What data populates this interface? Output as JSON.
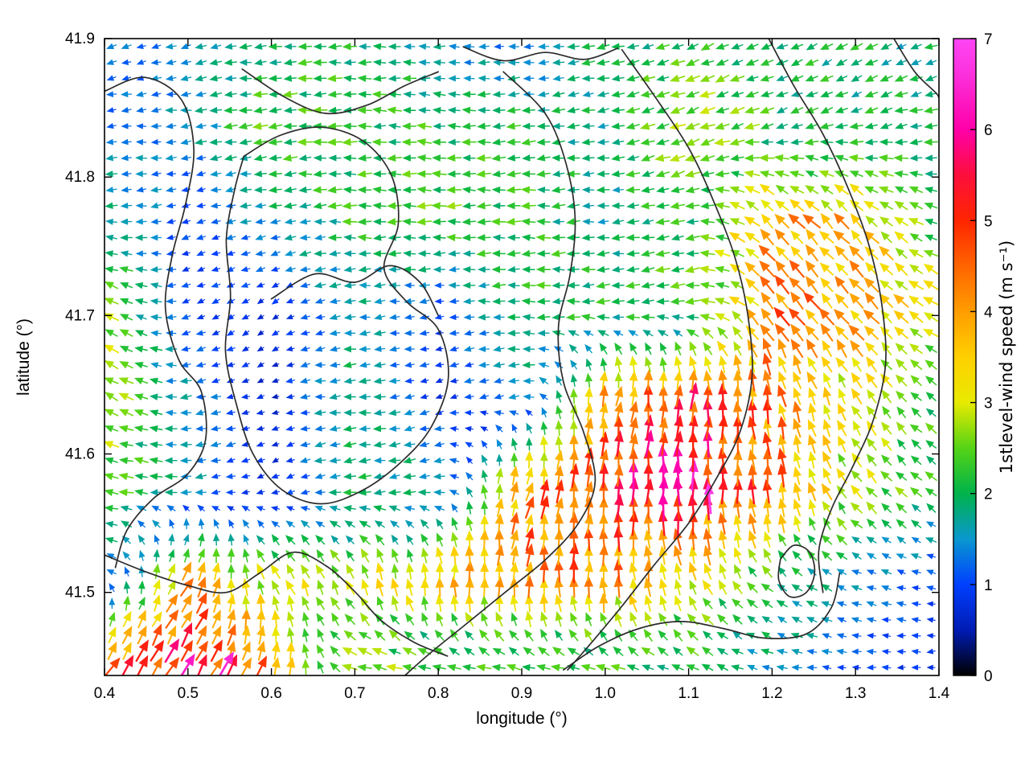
{
  "colors": {
    "background": "#ffffff",
    "contour": "#2b2b2b",
    "axis": "#000000"
  },
  "chart_data": {
    "type": "quiver",
    "title": "",
    "xlabel": "longitude (°)",
    "ylabel": "latitude (°)",
    "xlim": [
      0.4,
      1.4
    ],
    "ylim": [
      41.44,
      41.9
    ],
    "xticks": [
      "0.4",
      "0.5",
      "0.6",
      "0.7",
      "0.8",
      "0.9",
      "1.0",
      "1.1",
      "1.2",
      "1.3",
      "1.4"
    ],
    "yticks": [
      "41.5",
      "41.6",
      "41.7",
      "41.8",
      "41.9"
    ],
    "grid": false,
    "colorbar": {
      "label": "1stlevel-wind speed (m s⁻¹)",
      "min": 0,
      "max": 7,
      "ticks": [
        "0",
        "1",
        "2",
        "3",
        "4",
        "5",
        "6",
        "7"
      ],
      "palette": [
        [
          0.0,
          "#000000"
        ],
        [
          0.5,
          "#001bb3"
        ],
        [
          1.0,
          "#0040ff"
        ],
        [
          1.5,
          "#0a97cf"
        ],
        [
          2.0,
          "#00b34a"
        ],
        [
          2.5,
          "#55d416"
        ],
        [
          3.0,
          "#e8ea00"
        ],
        [
          3.5,
          "#ffd000"
        ],
        [
          4.0,
          "#ff9d00"
        ],
        [
          4.5,
          "#ff6400"
        ],
        [
          5.0,
          "#ff2500"
        ],
        [
          5.5,
          "#fc0f3c"
        ],
        [
          6.0,
          "#ff00a8"
        ],
        [
          6.6,
          "#fb30dc"
        ],
        [
          7.0,
          "#ff45f5"
        ]
      ]
    },
    "vector_grid": {
      "comment": "coarse control grid of 1st-level wind estimated from figure; dense arrow field is interpolated from it",
      "lons": [
        0.4,
        0.5,
        0.6,
        0.7,
        0.8,
        0.9,
        1.0,
        1.1,
        1.2,
        1.3,
        1.4
      ],
      "lats": [
        41.9,
        41.835,
        41.77,
        41.705,
        41.64,
        41.575,
        41.51,
        41.44
      ],
      "speed": [
        [
          1.2,
          1.4,
          2.0,
          2.1,
          1.5,
          1.1,
          2.0,
          2.1,
          2.0,
          2.0,
          1.8
        ],
        [
          1.2,
          1.5,
          2.4,
          2.2,
          2.2,
          2.2,
          1.8,
          2.9,
          2.2,
          2.0,
          2.0
        ],
        [
          2.0,
          1.0,
          1.6,
          2.2,
          2.4,
          2.2,
          1.8,
          2.2,
          4.0,
          3.6,
          2.2
        ],
        [
          2.8,
          1.0,
          0.8,
          1.7,
          1.0,
          2.2,
          2.2,
          2.4,
          4.3,
          4.0,
          3.0
        ],
        [
          3.0,
          1.5,
          0.6,
          2.0,
          0.8,
          1.5,
          4.0,
          5.0,
          4.2,
          3.0,
          2.2
        ],
        [
          2.6,
          1.6,
          0.8,
          2.0,
          1.8,
          4.2,
          5.2,
          5.8,
          4.5,
          2.8,
          2.2
        ],
        [
          1.5,
          4.0,
          3.0,
          3.0,
          3.8,
          4.2,
          4.2,
          3.2,
          2.2,
          1.5,
          1.0
        ],
        [
          5.0,
          5.6,
          4.2,
          3.0,
          2.5,
          2.5,
          2.3,
          2.2,
          1.6,
          1.0,
          0.8
        ]
      ],
      "dir_deg": [
        [
          200,
          195,
          185,
          180,
          180,
          185,
          190,
          200,
          205,
          210,
          200
        ],
        [
          185,
          185,
          185,
          180,
          175,
          185,
          190,
          200,
          200,
          195,
          190
        ],
        [
          180,
          200,
          190,
          180,
          180,
          180,
          185,
          195,
          135,
          135,
          160
        ],
        [
          150,
          200,
          220,
          185,
          190,
          180,
          185,
          190,
          130,
          130,
          150
        ],
        [
          150,
          190,
          200,
          185,
          200,
          190,
          80,
          85,
          100,
          120,
          150
        ],
        [
          170,
          185,
          210,
          190,
          190,
          75,
          85,
          90,
          95,
          130,
          140
        ],
        [
          160,
          60,
          120,
          110,
          90,
          85,
          90,
          110,
          140,
          160,
          170
        ],
        [
          55,
          60,
          70,
          170,
          180,
          175,
          170,
          160,
          170,
          180,
          190
        ]
      ]
    },
    "highlight_vectors": [
      {
        "lon": 1.125,
        "lat": 41.567,
        "speed": 6.8,
        "dir": 95
      },
      {
        "lon": 0.545,
        "lat": 41.447,
        "speed": 6.5,
        "dir": 60
      }
    ],
    "arrow_density": {
      "nx": 56,
      "ny": 40
    },
    "contours": [
      [
        [
          0.4,
          41.862
        ],
        [
          0.448,
          41.872
        ],
        [
          0.492,
          41.856
        ],
        [
          0.507,
          41.82
        ],
        [
          0.497,
          41.78
        ],
        [
          0.481,
          41.743
        ],
        [
          0.473,
          41.705
        ],
        [
          0.489,
          41.668
        ],
        [
          0.516,
          41.645
        ],
        [
          0.521,
          41.61
        ],
        [
          0.499,
          41.585
        ],
        [
          0.459,
          41.568
        ],
        [
          0.427,
          41.545
        ],
        [
          0.413,
          41.518
        ]
      ],
      [
        [
          0.565,
          41.878
        ],
        [
          0.615,
          41.858
        ],
        [
          0.665,
          41.846
        ],
        [
          0.715,
          41.852
        ],
        [
          0.76,
          41.866
        ],
        [
          0.8,
          41.876
        ]
      ],
      [
        [
          0.83,
          41.894
        ],
        [
          0.878,
          41.884
        ],
        [
          0.928,
          41.89
        ],
        [
          0.975,
          41.885
        ],
        [
          1.015,
          41.893
        ]
      ],
      [
        [
          0.567,
          41.815
        ],
        [
          0.61,
          41.83
        ],
        [
          0.66,
          41.836
        ],
        [
          0.71,
          41.826
        ],
        [
          0.744,
          41.801
        ],
        [
          0.752,
          41.766
        ],
        [
          0.735,
          41.734
        ],
        [
          0.762,
          41.71
        ],
        [
          0.8,
          41.69
        ],
        [
          0.812,
          41.655
        ],
        [
          0.792,
          41.62
        ],
        [
          0.757,
          41.595
        ],
        [
          0.71,
          41.574
        ],
        [
          0.66,
          41.564
        ],
        [
          0.613,
          41.574
        ],
        [
          0.578,
          41.6
        ],
        [
          0.558,
          41.636
        ],
        [
          0.545,
          41.674
        ],
        [
          0.551,
          41.714
        ],
        [
          0.546,
          41.755
        ],
        [
          0.556,
          41.791
        ],
        [
          0.567,
          41.815
        ]
      ],
      [
        [
          0.6,
          41.712
        ],
        [
          0.652,
          41.73
        ],
        [
          0.7,
          41.724
        ],
        [
          0.742,
          41.736
        ],
        [
          0.778,
          41.724
        ],
        [
          0.8,
          41.7
        ]
      ],
      [
        [
          0.878,
          41.876
        ],
        [
          0.928,
          41.846
        ],
        [
          0.953,
          41.81
        ],
        [
          0.964,
          41.77
        ],
        [
          0.958,
          41.73
        ],
        [
          0.944,
          41.692
        ],
        [
          0.95,
          41.652
        ],
        [
          0.974,
          41.616
        ],
        [
          0.988,
          41.58
        ],
        [
          0.968,
          41.55
        ],
        [
          0.929,
          41.524
        ],
        [
          0.88,
          41.5
        ],
        [
          0.831,
          41.476
        ],
        [
          0.79,
          41.456
        ],
        [
          0.76,
          41.44
        ]
      ],
      [
        [
          1.02,
          41.892
        ],
        [
          1.062,
          41.856
        ],
        [
          1.101,
          41.82
        ],
        [
          1.131,
          41.781
        ],
        [
          1.156,
          41.741
        ],
        [
          1.171,
          41.7
        ],
        [
          1.176,
          41.656
        ],
        [
          1.161,
          41.615
        ],
        [
          1.131,
          41.58
        ],
        [
          1.1,
          41.55
        ],
        [
          1.059,
          41.52
        ],
        [
          1.02,
          41.49
        ],
        [
          0.984,
          41.464
        ],
        [
          0.955,
          41.444
        ]
      ],
      [
        [
          1.196,
          41.9
        ],
        [
          1.226,
          41.866
        ],
        [
          1.261,
          41.831
        ],
        [
          1.291,
          41.792
        ],
        [
          1.316,
          41.751
        ],
        [
          1.331,
          41.71
        ],
        [
          1.336,
          41.665
        ],
        [
          1.321,
          41.624
        ],
        [
          1.296,
          41.59
        ],
        [
          1.271,
          41.56
        ],
        [
          1.256,
          41.53
        ],
        [
          1.261,
          41.5
        ]
      ],
      [
        [
          0.4,
          41.527
        ],
        [
          0.449,
          41.515
        ],
        [
          0.5,
          41.505
        ],
        [
          0.546,
          41.5
        ],
        [
          0.586,
          41.514
        ],
        [
          0.626,
          41.529
        ],
        [
          0.666,
          41.519
        ],
        [
          0.701,
          41.5
        ],
        [
          0.731,
          41.48
        ],
        [
          0.771,
          41.464
        ],
        [
          0.811,
          41.454
        ]
      ],
      [
        [
          1.21,
          41.524
        ],
        [
          1.226,
          41.534
        ],
        [
          1.245,
          41.529
        ],
        [
          1.251,
          41.514
        ],
        [
          1.241,
          41.5
        ],
        [
          1.221,
          41.497
        ],
        [
          1.208,
          41.509
        ],
        [
          1.21,
          41.524
        ]
      ],
      [
        [
          0.95,
          41.444
        ],
        [
          0.992,
          41.461
        ],
        [
          1.041,
          41.474
        ],
        [
          1.091,
          41.479
        ],
        [
          1.141,
          41.474
        ],
        [
          1.191,
          41.467
        ],
        [
          1.241,
          41.47
        ],
        [
          1.271,
          41.489
        ],
        [
          1.281,
          41.514
        ]
      ],
      [
        [
          1.346,
          41.9
        ],
        [
          1.371,
          41.876
        ],
        [
          1.396,
          41.861
        ],
        [
          1.4,
          41.857
        ]
      ]
    ]
  }
}
